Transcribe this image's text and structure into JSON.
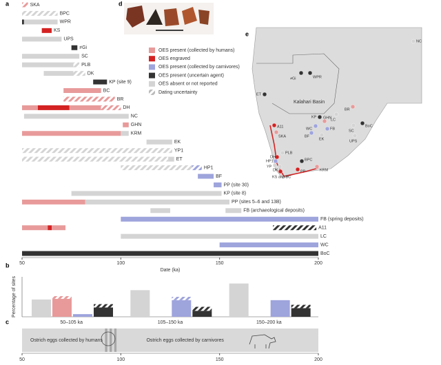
{
  "panel_labels": [
    "a",
    "b",
    "c",
    "d",
    "e"
  ],
  "legend": [
    {
      "label": "OES present (collected by humans)",
      "color": "#e89a9a"
    },
    {
      "label": "OES engraved",
      "color": "#d42222"
    },
    {
      "label": "OES present (collected by carnivores)",
      "color": "#9ea4dc"
    },
    {
      "label": "OES present (uncertain agent)",
      "color": "#333333"
    },
    {
      "label": "OES absent or not reported",
      "color": "#d4d4d4"
    },
    {
      "label": "Dating uncertainty",
      "color": "#bbbbbb"
    }
  ],
  "chart_data": [
    {
      "type": "timeline",
      "xlabel": "Date (ka)",
      "xlim": [
        50,
        200
      ],
      "xticks": [
        50,
        100,
        150,
        200
      ],
      "sites": [
        {
          "name": "SKA",
          "segments": [
            {
              "start": 50,
              "end": 53,
              "kind": 0,
              "uncertain": true
            }
          ]
        },
        {
          "name": "BPC",
          "segments": [
            {
              "start": 50,
              "end": 68,
              "kind": 4,
              "uncertain": true
            }
          ]
        },
        {
          "name": "WPR",
          "segments": [
            {
              "start": 50,
              "end": 51,
              "kind": 3
            },
            {
              "start": 51,
              "end": 68,
              "kind": 4
            }
          ]
        },
        {
          "name": "KS",
          "segments": [
            {
              "start": 60,
              "end": 65,
              "kind": 1
            }
          ]
        },
        {
          "name": "UPS",
          "segments": [
            {
              "start": 50,
              "end": 70,
              "kind": 4
            }
          ]
        },
        {
          "name": "≠Gi",
          "segments": [
            {
              "start": 75,
              "end": 78,
              "kind": 3
            }
          ]
        },
        {
          "name": "SC",
          "segments": [
            {
              "start": 50,
              "end": 79,
              "kind": 4
            }
          ]
        },
        {
          "name": "PLB",
          "segments": [
            {
              "start": 50,
              "end": 76,
              "kind": 4
            },
            {
              "start": 76,
              "end": 79,
              "kind": 4,
              "uncertain": true
            }
          ]
        },
        {
          "name": "DK",
          "segments": [
            {
              "start": 61,
              "end": 76,
              "kind": 4
            },
            {
              "start": 76,
              "end": 82,
              "kind": 4,
              "uncertain": true
            }
          ]
        },
        {
          "name": "KP (site 9)",
          "segments": [
            {
              "start": 86,
              "end": 93,
              "kind": 3
            }
          ]
        },
        {
          "name": "BC",
          "segments": [
            {
              "start": 71,
              "end": 90,
              "kind": 0
            }
          ]
        },
        {
          "name": "BR",
          "segments": [
            {
              "start": 71,
              "end": 97,
              "kind": 0,
              "uncertain": true
            }
          ]
        },
        {
          "name": "DH",
          "segments": [
            {
              "start": 50,
              "end": 58,
              "kind": 0
            },
            {
              "start": 58,
              "end": 74,
              "kind": 1
            },
            {
              "start": 74,
              "end": 90,
              "kind": 0
            },
            {
              "start": 90,
              "end": 100,
              "kind": 0,
              "uncertain": true
            }
          ]
        },
        {
          "name": "NC",
          "segments": [
            {
              "start": 51,
              "end": 104,
              "kind": 4
            }
          ]
        },
        {
          "name": "GHN",
          "segments": [
            {
              "start": 101,
              "end": 104,
              "kind": 0
            }
          ]
        },
        {
          "name": "KRM",
          "segments": [
            {
              "start": 50,
              "end": 100,
              "kind": 0
            },
            {
              "start": 100,
              "end": 104,
              "kind": 4
            }
          ]
        },
        {
          "name": "EK",
          "segments": [
            {
              "start": 113,
              "end": 126,
              "kind": 4
            }
          ]
        },
        {
          "name": "YP1",
          "segments": [
            {
              "start": 50,
              "end": 126,
              "kind": 4,
              "uncertain": true
            }
          ]
        },
        {
          "name": "ET",
          "segments": [
            {
              "start": 50,
              "end": 124,
              "kind": 4,
              "uncertain": true
            },
            {
              "start": 124,
              "end": 127,
              "kind": 4
            }
          ]
        },
        {
          "name": "HP1",
          "segments": [
            {
              "start": 100,
              "end": 136,
              "kind": 4,
              "uncertain": true
            },
            {
              "start": 136,
              "end": 141,
              "kind": 2,
              "uncertain": true
            }
          ]
        },
        {
          "name": "BF",
          "segments": [
            {
              "start": 139,
              "end": 147,
              "kind": 2
            }
          ]
        },
        {
          "name": "PP (site 30)",
          "segments": [
            {
              "start": 147,
              "end": 151,
              "kind": 2
            }
          ]
        },
        {
          "name": "KP (site 8)",
          "segments": [
            {
              "start": 75,
              "end": 151,
              "kind": 4
            }
          ]
        },
        {
          "name": "PP (sites 5–6 and 13B)",
          "segments": [
            {
              "start": 50,
              "end": 82,
              "kind": 0
            },
            {
              "start": 82,
              "end": 155,
              "kind": 4
            }
          ]
        },
        {
          "name": "FB (archaeological deposits)",
          "segments": [
            {
              "start": 115,
              "end": 125,
              "kind": 4
            },
            {
              "start": 153,
              "end": 161,
              "kind": 4
            }
          ]
        },
        {
          "name": "FB (spring deposits)",
          "segments": [
            {
              "start": 100,
              "end": 200,
              "kind": 2
            }
          ]
        },
        {
          "name": "A11",
          "segments": [
            {
              "start": 50,
              "end": 63,
              "kind": 0
            },
            {
              "start": 63,
              "end": 65,
              "kind": 1
            },
            {
              "start": 65,
              "end": 72,
              "kind": 0
            },
            {
              "start": 177,
              "end": 199,
              "kind": 3,
              "uncertain": true
            }
          ]
        },
        {
          "name": "LC",
          "segments": [
            {
              "start": 100,
              "end": 200,
              "kind": 4
            }
          ]
        },
        {
          "name": "WC",
          "segments": [
            {
              "start": 150,
              "end": 200,
              "kind": 2
            }
          ]
        },
        {
          "name": "BoC",
          "segments": [
            {
              "start": 50,
              "end": 200,
              "kind": 3
            }
          ]
        }
      ]
    },
    {
      "type": "bar",
      "ylabel": "Percentage of sites",
      "categories": [
        "50–105 ka",
        "105–150 ka",
        "150–200 ka"
      ],
      "ylim": [
        0,
        60
      ],
      "series": [
        {
          "color": "#d4d4d4",
          "values": [
            26,
            40,
            50
          ],
          "uncertain": [
            0,
            0,
            0
          ]
        },
        {
          "color": "#e89a9a",
          "values": [
            27,
            null,
            null
          ],
          "uncertain": [
            4,
            null,
            null
          ]
        },
        {
          "color": "#9ea4dc",
          "values": [
            4,
            25,
            25
          ],
          "uncertain": [
            0,
            5,
            0
          ]
        },
        {
          "color": "#333333",
          "values": [
            14,
            9,
            13
          ],
          "uncertain": [
            5,
            6,
            5
          ]
        }
      ]
    },
    {
      "type": "band",
      "xlim": [
        50,
        200
      ],
      "xticks": [
        50,
        100,
        150,
        200
      ],
      "transition": [
        92,
        99
      ],
      "texts": [
        "Ostrich eggs collected by humans",
        "Ostrich eggs collected by carnivores"
      ]
    }
  ],
  "map": {
    "region": "Kalahari Basin",
    "sites": [
      {
        "label": "NC",
        "kind": 4
      },
      {
        "label": "ET",
        "kind": 3
      },
      {
        "label": "≠Gi",
        "kind": 3
      },
      {
        "label": "WPR",
        "kind": 3
      },
      {
        "label": "BR",
        "kind": 0
      },
      {
        "label": "LC",
        "kind": 4
      },
      {
        "label": "BoC",
        "kind": 3
      },
      {
        "label": "SC",
        "kind": 4
      },
      {
        "label": "UPS",
        "kind": 4
      },
      {
        "label": "KP",
        "kind": 3
      },
      {
        "label": "GHN",
        "kind": 0
      },
      {
        "label": "WC",
        "kind": 2
      },
      {
        "label": "FB",
        "kind": 2
      },
      {
        "label": "BF",
        "kind": 2
      },
      {
        "label": "EK",
        "kind": 4
      },
      {
        "label": "A11",
        "kind": 1
      },
      {
        "label": "SKA",
        "kind": 0
      },
      {
        "label": "PLB",
        "kind": 4
      },
      {
        "label": "DH",
        "kind": 1
      },
      {
        "label": "HP1",
        "kind": 2
      },
      {
        "label": "YP",
        "kind": 4
      },
      {
        "label": "DK",
        "kind": 4
      },
      {
        "label": "KS and BC",
        "kind": 1
      },
      {
        "label": "BPC",
        "kind": 3
      },
      {
        "label": "PP",
        "kind": 1
      },
      {
        "label": "KRM",
        "kind": 0
      }
    ]
  }
}
